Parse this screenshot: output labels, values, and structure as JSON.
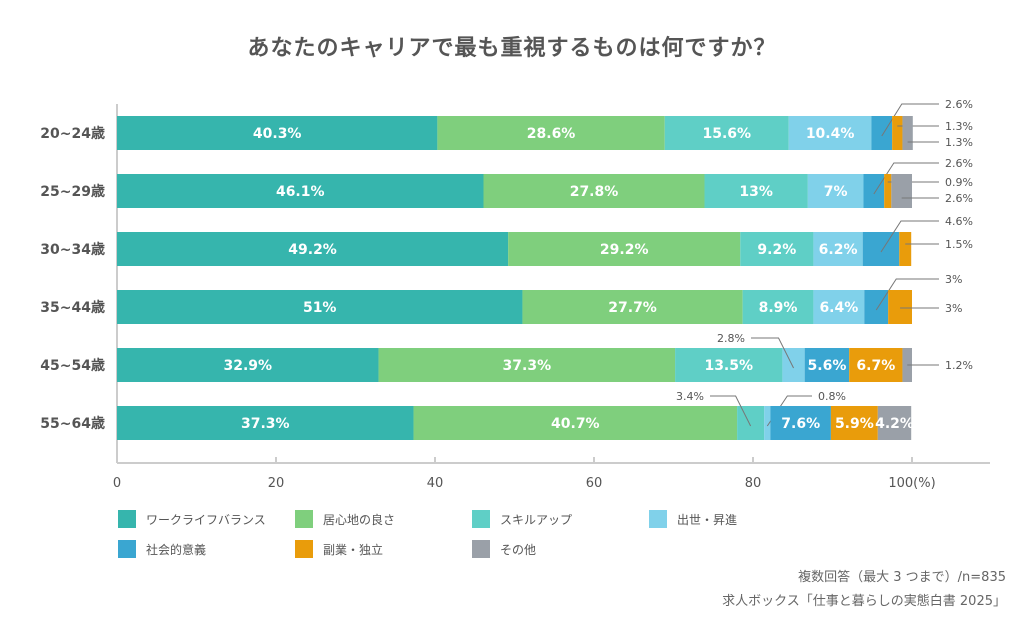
{
  "chart_data": {
    "type": "bar",
    "orientation": "horizontal",
    "stacked": true,
    "title": "あなたのキャリアで最も重視するものは何ですか？",
    "categories": [
      "20~24歳",
      "25~29歳",
      "30~34歳",
      "35~44歳",
      "45~54歳",
      "55~64歳"
    ],
    "series": [
      {
        "name": "ワークライフバランス",
        "color": "#36b5ad",
        "values": [
          40.3,
          46.1,
          49.2,
          51,
          32.9,
          37.3
        ],
        "labels": [
          "40.3%",
          "46.1%",
          "49.2%",
          "51%",
          "32.9%",
          "37.3%"
        ]
      },
      {
        "name": "居心地の良さ",
        "color": "#7fcf7d",
        "values": [
          28.6,
          27.8,
          29.2,
          27.7,
          37.3,
          40.7
        ],
        "labels": [
          "28.6%",
          "27.8%",
          "29.2%",
          "27.7%",
          "37.3%",
          "40.7%"
        ]
      },
      {
        "name": "スキルアップ",
        "color": "#5fcfc6",
        "values": [
          15.6,
          13,
          9.2,
          8.9,
          13.5,
          3.4
        ],
        "labels": [
          "15.6%",
          "13%",
          "9.2%",
          "8.9%",
          "13.5%",
          "3.4%"
        ]
      },
      {
        "name": "出世・昇進",
        "color": "#80d1ea",
        "values": [
          10.4,
          7,
          6.2,
          6.4,
          2.8,
          0.8
        ],
        "labels": [
          "10.4%",
          "7%",
          "6.2%",
          "6.4%",
          "2.8%",
          "0.8%"
        ]
      },
      {
        "name": "社会的意義",
        "color": "#3aa6d1",
        "values": [
          2.6,
          2.6,
          4.6,
          3,
          5.6,
          7.6
        ],
        "labels": [
          "2.6%",
          "2.6%",
          "4.6%",
          "3%",
          "5.6%",
          "7.6%"
        ]
      },
      {
        "name": "副業・独立",
        "color": "#e99c0b",
        "values": [
          1.3,
          0.9,
          1.5,
          3,
          6.7,
          5.9
        ],
        "labels": [
          "1.3%",
          "0.9%",
          "1.5%",
          "3%",
          "6.7%",
          "5.9%"
        ]
      },
      {
        "name": "その他",
        "color": "#9aa0a8",
        "values": [
          1.3,
          2.6,
          0,
          0,
          1.2,
          4.2
        ],
        "labels": [
          "1.3%",
          "2.6%",
          "",
          "",
          "1.2%",
          "4.2%"
        ]
      }
    ],
    "xlim": [
      0,
      100
    ],
    "xticks": [
      "0",
      "20",
      "40",
      "60",
      "80",
      "100(%)"
    ],
    "grid": false,
    "legend_position": "bottom-left"
  },
  "footnotes": [
    "複数回答（最大 3 つまで）/n=835",
    "求人ボックス「仕事と暮らしの実態白書 2025」"
  ]
}
